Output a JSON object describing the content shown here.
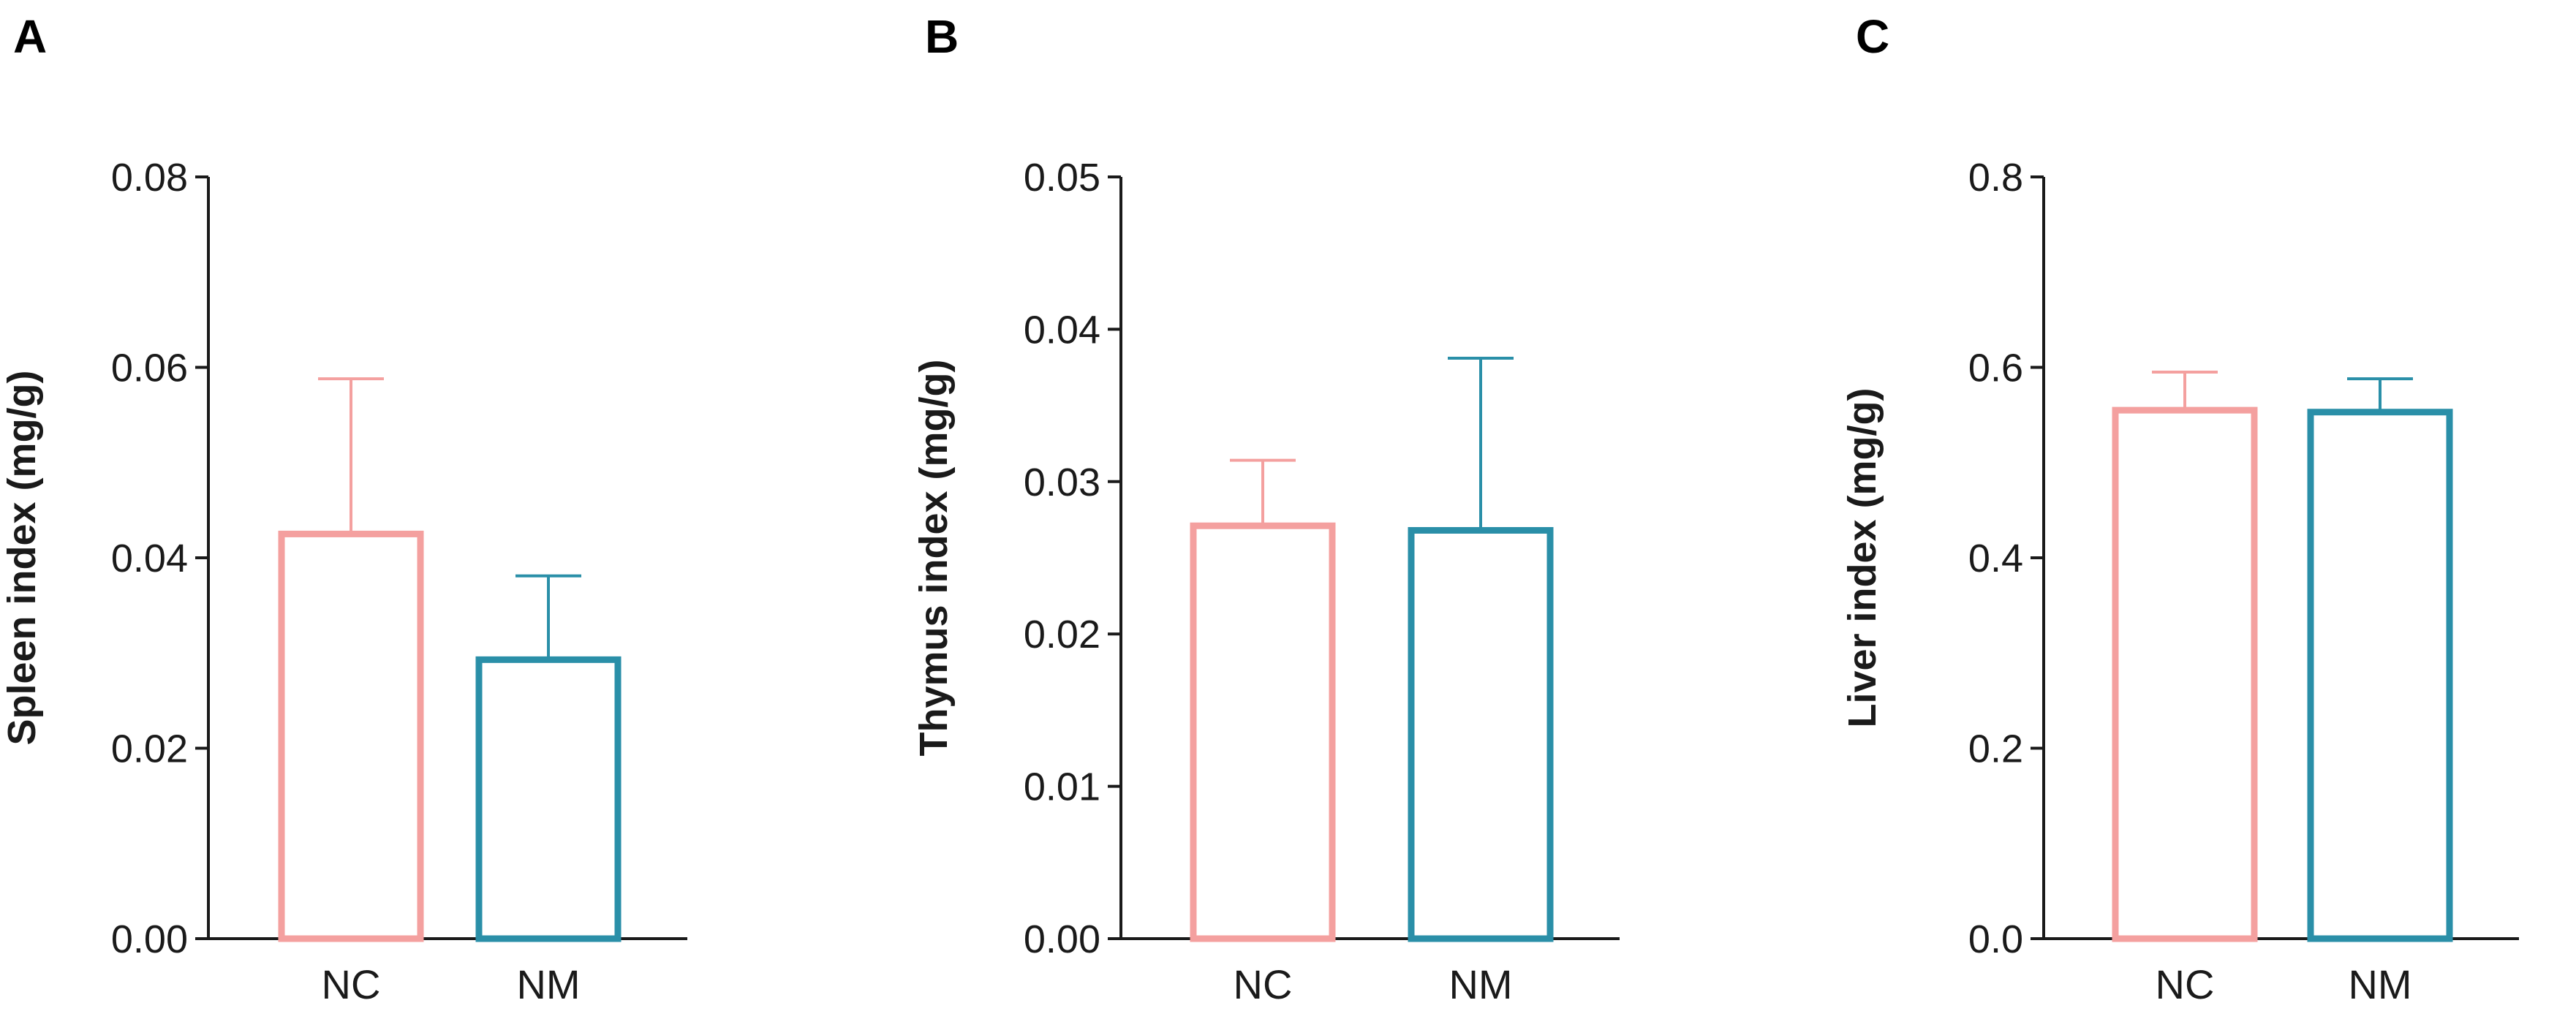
{
  "chart_data": [
    {
      "type": "bar",
      "panel_label": "A",
      "ylabel": "Spleen index (mg/g)",
      "ylim": [
        0,
        0.08
      ],
      "yticks": [
        "0.00",
        "0.02",
        "0.04",
        "0.06",
        "0.08"
      ],
      "yticks_values": [
        0,
        0.02,
        0.04,
        0.06,
        0.08
      ],
      "categories": [
        "NC",
        "NM"
      ],
      "values": [
        0.0425,
        0.0293
      ],
      "errors": [
        0.0163,
        0.0088
      ],
      "colors": [
        "#F4A09F",
        "#2A8FA8"
      ]
    },
    {
      "type": "bar",
      "panel_label": "B",
      "ylabel": "Thymus index (mg/g)",
      "ylim": [
        0,
        0.05
      ],
      "yticks": [
        "0.00",
        "0.01",
        "0.02",
        "0.03",
        "0.04",
        "0.05"
      ],
      "yticks_values": [
        0,
        0.01,
        0.02,
        0.03,
        0.04,
        0.05
      ],
      "categories": [
        "NC",
        "NM"
      ],
      "values": [
        0.0271,
        0.0268
      ],
      "errors": [
        0.0043,
        0.0113
      ],
      "colors": [
        "#F4A09F",
        "#2A8FA8"
      ]
    },
    {
      "type": "bar",
      "panel_label": "C",
      "ylabel": "Liver index (mg/g)",
      "ylim": [
        0,
        0.8
      ],
      "yticks": [
        "0.0",
        "0.2",
        "0.4",
        "0.6",
        "0.8"
      ],
      "yticks_values": [
        0,
        0.2,
        0.4,
        0.6,
        0.8
      ],
      "categories": [
        "NC",
        "NM"
      ],
      "values": [
        0.555,
        0.553
      ],
      "errors": [
        0.04,
        0.035
      ],
      "colors": [
        "#F4A09F",
        "#2A8FA8"
      ]
    }
  ]
}
